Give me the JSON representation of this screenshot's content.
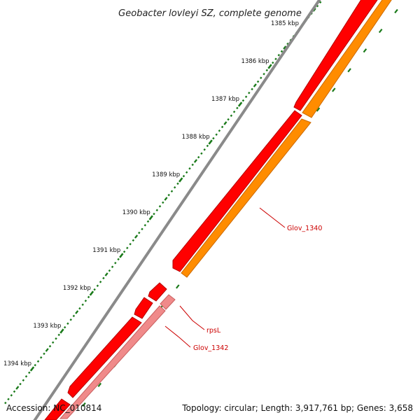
{
  "title": "Geobacter lovleyi SZ, complete genome",
  "accession": "Accession: NC_010814",
  "topology": "Topology: circular; Length: 3,917,761 bp; Genes: 3,658",
  "colors": {
    "backbone": "#8a8a8a",
    "gene_forward": "#ff0000",
    "gene_forward_shade": "#b30000",
    "gene_reverse": "#ff8c00",
    "gene_reverse_shade": "#cc6a00",
    "gene_pseudo": "#f08a8a",
    "gene_pseudo_shade": "#c95f5f",
    "ticks": "#1a7a1a",
    "label": "#cc0000"
  },
  "ticks": [
    {
      "kbp": 1385,
      "label": "1385 kbp"
    },
    {
      "kbp": 1386,
      "label": "1386 kbp"
    },
    {
      "kbp": 1387,
      "label": "1387 kbp"
    },
    {
      "kbp": 1388,
      "label": "1388 kbp"
    },
    {
      "kbp": 1389,
      "label": "1389 kbp"
    },
    {
      "kbp": 1390,
      "label": "1390 kbp"
    },
    {
      "kbp": 1391,
      "label": "1391 kbp"
    },
    {
      "kbp": 1392,
      "label": "1392 kbp"
    },
    {
      "kbp": 1393,
      "label": "1393 kbp"
    },
    {
      "kbp": 1394,
      "label": "1394 kbp"
    }
  ],
  "gene_labels": [
    {
      "name": "glov-1340-label",
      "text": "Glov_1340"
    },
    {
      "name": "rpsl-label",
      "text": "rpsL"
    },
    {
      "name": "glov-1342-label",
      "text": "Glov_1342"
    }
  ]
}
